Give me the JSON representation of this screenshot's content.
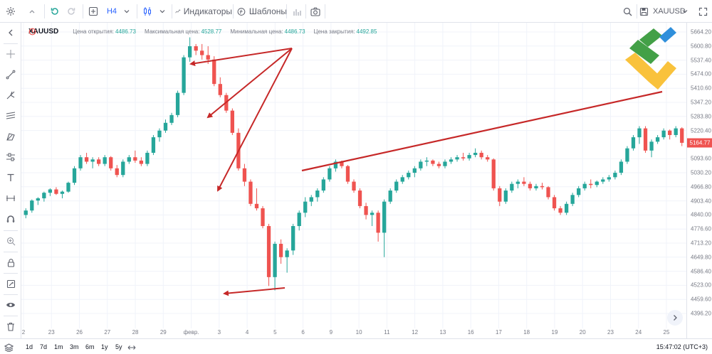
{
  "toolbar": {
    "timeframe": "H4",
    "indicators_label": "Индикаторы",
    "templates_label": "Шаблоны",
    "save_symbol": "XAUUSD"
  },
  "legend": {
    "symbol": "XAUUSD",
    "open_label": "Цена открытия:",
    "open_value": "4486.73",
    "high_label": "Максимальная цена:",
    "high_value": "4528.77",
    "low_label": "Минимальная цена:",
    "low_value": "4486.73",
    "close_label": "Цена закрытия:",
    "close_value": "4492.85"
  },
  "price_scale": {
    "labels": [
      "5664.20",
      "5600.80",
      "5537.40",
      "5474.00",
      "5410.60",
      "5347.20",
      "5283.80",
      "5220.40",
      "5093.60",
      "5030.20",
      "4966.80",
      "4903.40",
      "4840.00",
      "4776.60",
      "4713.20",
      "4649.80",
      "4586.40",
      "4523.00",
      "4459.60",
      "4396.20"
    ],
    "last_price": "5164.77"
  },
  "time_axis": {
    "labels": [
      "2",
      "23",
      "26",
      "27",
      "28",
      "29",
      "февр.",
      "3",
      "4",
      "5",
      "6",
      "9",
      "10",
      "11",
      "12",
      "13",
      "16",
      "17",
      "18",
      "19",
      "20",
      "23",
      "24",
      "25"
    ]
  },
  "bottom_bar": {
    "ranges": [
      "1d",
      "7d",
      "1m",
      "3m",
      "6m",
      "1y",
      "5y"
    ],
    "clock": "15:47:02 (UTC+3)"
  },
  "colors": {
    "up": "#26a69a",
    "down": "#ef5350",
    "arrow": "#c62828",
    "accent": "#2962ff"
  },
  "icons": {
    "left_tools": [
      "chevron-left-icon",
      "crosshair-icon",
      "trend-line-icon",
      "pitchfork-icon",
      "fib-icon",
      "pattern-icon",
      "projection-icon",
      "text-icon",
      "measure-icon",
      "magnet-icon",
      "zoom-in-icon",
      "lock-icon",
      "lock-drawings-icon",
      "eye-icon",
      "trash-icon"
    ]
  },
  "chart_data": {
    "type": "candlestick",
    "symbol": "XAUUSD",
    "timeframe": "H4",
    "ylim": [
      4332.8,
      5664.2
    ],
    "grid": true,
    "last_price": 5164.77,
    "candles": [
      [
        4840,
        4870,
        4825,
        4860
      ],
      [
        4860,
        4910,
        4850,
        4905
      ],
      [
        4905,
        4920,
        4885,
        4915
      ],
      [
        4915,
        4945,
        4900,
        4940
      ],
      [
        4940,
        4960,
        4925,
        4955
      ],
      [
        4955,
        4965,
        4930,
        4935
      ],
      [
        4935,
        4950,
        4915,
        4945
      ],
      [
        4945,
        4990,
        4940,
        4985
      ],
      [
        4985,
        5060,
        4975,
        5050
      ],
      [
        5050,
        5110,
        5040,
        5100
      ],
      [
        5100,
        5120,
        5070,
        5080
      ],
      [
        5080,
        5100,
        5050,
        5090
      ],
      [
        5090,
        5100,
        5060,
        5070
      ],
      [
        5070,
        5110,
        5060,
        5100
      ],
      [
        5100,
        5105,
        5040,
        5050
      ],
      [
        5050,
        5065,
        5010,
        5020
      ],
      [
        5020,
        5090,
        5010,
        5080
      ],
      [
        5080,
        5110,
        5070,
        5100
      ],
      [
        5100,
        5130,
        5075,
        5085
      ],
      [
        5085,
        5100,
        5060,
        5070
      ],
      [
        5070,
        5130,
        5060,
        5120
      ],
      [
        5120,
        5200,
        5110,
        5190
      ],
      [
        5190,
        5230,
        5170,
        5220
      ],
      [
        5220,
        5270,
        5210,
        5255
      ],
      [
        5255,
        5300,
        5245,
        5290
      ],
      [
        5290,
        5400,
        5280,
        5390
      ],
      [
        5390,
        5560,
        5380,
        5550
      ],
      [
        5550,
        5640,
        5530,
        5600
      ],
      [
        5600,
        5610,
        5560,
        5580
      ],
      [
        5580,
        5610,
        5540,
        5560
      ],
      [
        5560,
        5600,
        5520,
        5540
      ],
      [
        5540,
        5555,
        5420,
        5430
      ],
      [
        5430,
        5460,
        5370,
        5380
      ],
      [
        5380,
        5390,
        5300,
        5310
      ],
      [
        5310,
        5320,
        5200,
        5210
      ],
      [
        5210,
        5230,
        5040,
        5050
      ],
      [
        5050,
        5070,
        4970,
        4990
      ],
      [
        4990,
        5000,
        4880,
        4890
      ],
      [
        4890,
        4960,
        4860,
        4870
      ],
      [
        4870,
        4880,
        4780,
        4790
      ],
      [
        4790,
        4800,
        4520,
        4560
      ],
      [
        4560,
        4720,
        4500,
        4710
      ],
      [
        4710,
        4730,
        4620,
        4650
      ],
      [
        4650,
        4690,
        4580,
        4680
      ],
      [
        4680,
        4800,
        4660,
        4790
      ],
      [
        4790,
        4860,
        4770,
        4850
      ],
      [
        4850,
        4920,
        4830,
        4900
      ],
      [
        4900,
        4930,
        4880,
        4920
      ],
      [
        4920,
        4960,
        4900,
        4950
      ],
      [
        4950,
        5010,
        4940,
        5000
      ],
      [
        5000,
        5060,
        4990,
        5050
      ],
      [
        5050,
        5090,
        5035,
        5080
      ],
      [
        5080,
        5085,
        5050,
        5060
      ],
      [
        5060,
        5065,
        4980,
        4990
      ],
      [
        4990,
        5000,
        4940,
        4950
      ],
      [
        4950,
        4960,
        4870,
        4880
      ],
      [
        4880,
        4895,
        4820,
        4840
      ],
      [
        4840,
        4860,
        4790,
        4850
      ],
      [
        4850,
        4860,
        4720,
        4760
      ],
      [
        4760,
        4910,
        4650,
        4900
      ],
      [
        4900,
        4960,
        4890,
        4950
      ],
      [
        4950,
        5000,
        4940,
        4990
      ],
      [
        4990,
        5020,
        4980,
        5010
      ],
      [
        5010,
        5040,
        5000,
        5030
      ],
      [
        5030,
        5060,
        5010,
        5050
      ],
      [
        5050,
        5090,
        5040,
        5080
      ],
      [
        5080,
        5100,
        5060,
        5085
      ],
      [
        5085,
        5090,
        5060,
        5070
      ],
      [
        5070,
        5080,
        5050,
        5060
      ],
      [
        5060,
        5090,
        5050,
        5080
      ],
      [
        5080,
        5100,
        5070,
        5090
      ],
      [
        5090,
        5110,
        5080,
        5100
      ],
      [
        5100,
        5120,
        5085,
        5095
      ],
      [
        5095,
        5120,
        5085,
        5110
      ],
      [
        5110,
        5140,
        5100,
        5120
      ],
      [
        5120,
        5130,
        5090,
        5100
      ],
      [
        5100,
        5110,
        5080,
        5090
      ],
      [
        5090,
        5095,
        4950,
        4960
      ],
      [
        4960,
        4970,
        4880,
        4900
      ],
      [
        4900,
        4960,
        4890,
        4950
      ],
      [
        4950,
        4990,
        4940,
        4980
      ],
      [
        4980,
        5000,
        4960,
        4990
      ],
      [
        4990,
        5010,
        4970,
        4980
      ],
      [
        4980,
        4990,
        4950,
        4960
      ],
      [
        4960,
        4980,
        4950,
        4970
      ],
      [
        4970,
        4985,
        4955,
        4965
      ],
      [
        4965,
        4970,
        4910,
        4920
      ],
      [
        4920,
        4930,
        4860,
        4870
      ],
      [
        4870,
        4880,
        4840,
        4850
      ],
      [
        4850,
        4900,
        4840,
        4890
      ],
      [
        4890,
        4940,
        4880,
        4930
      ],
      [
        4930,
        4970,
        4920,
        4960
      ],
      [
        4960,
        4990,
        4950,
        4980
      ],
      [
        4980,
        5000,
        4960,
        4975
      ],
      [
        4975,
        4995,
        4965,
        4990
      ],
      [
        4990,
        5010,
        4980,
        5000
      ],
      [
        5000,
        5020,
        4990,
        5010
      ],
      [
        5010,
        5040,
        5000,
        5030
      ],
      [
        5030,
        5090,
        5020,
        5080
      ],
      [
        5080,
        5150,
        5070,
        5140
      ],
      [
        5140,
        5200,
        5130,
        5190
      ],
      [
        5190,
        5240,
        5160,
        5230
      ],
      [
        5230,
        5240,
        5120,
        5130
      ],
      [
        5130,
        5180,
        5100,
        5170
      ],
      [
        5170,
        5200,
        5160,
        5190
      ],
      [
        5190,
        5230,
        5180,
        5220
      ],
      [
        5220,
        5225,
        5180,
        5200
      ],
      [
        5200,
        5240,
        5190,
        5230
      ],
      [
        5230,
        5235,
        5150,
        5165
      ]
    ]
  }
}
